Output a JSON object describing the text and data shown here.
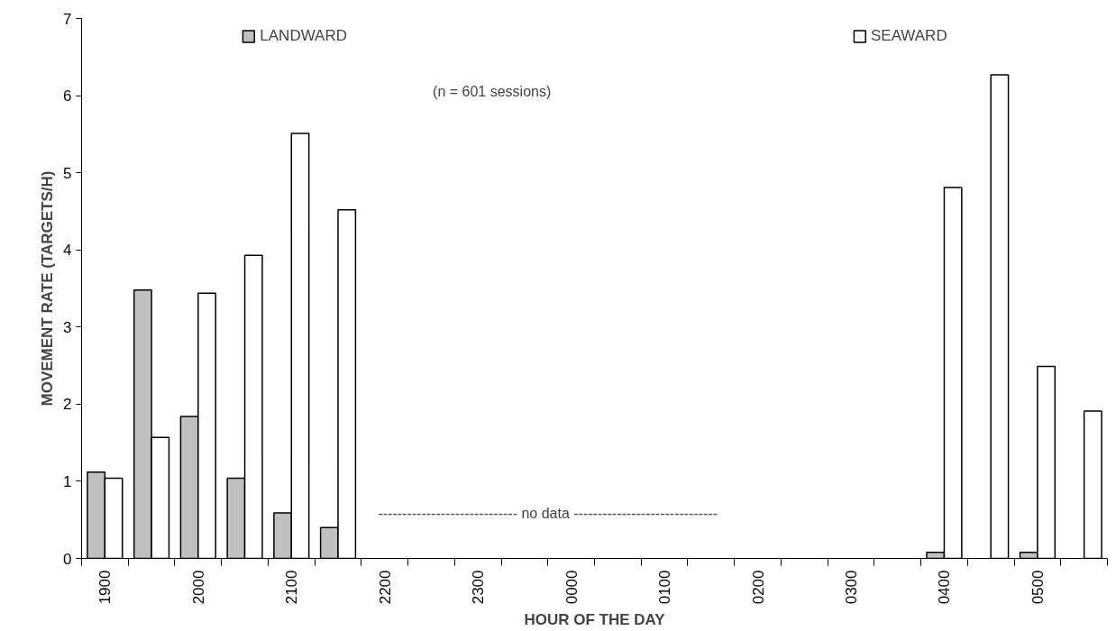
{
  "chart_data": {
    "type": "bar",
    "xlabel": "HOUR OF THE DAY",
    "ylabel": "MOVEMENT RATE (TARGETS/H)",
    "categories": [
      "1900",
      null,
      "2000",
      null,
      "2100",
      null,
      "2200",
      null,
      "2300",
      null,
      "0000",
      null,
      "0100",
      null,
      "0200",
      null,
      "0300",
      null,
      "0400",
      null,
      "0500",
      null
    ],
    "series": [
      {
        "name": "LANDWARD",
        "color": "#c0c0c0",
        "values": [
          1.12,
          3.48,
          1.84,
          1.04,
          0.59,
          0.4,
          null,
          null,
          null,
          null,
          null,
          null,
          null,
          null,
          null,
          null,
          null,
          null,
          0.08,
          null,
          0.08,
          null
        ]
      },
      {
        "name": "SEAWARD",
        "color": "#ffffff",
        "values": [
          1.04,
          1.57,
          3.44,
          3.93,
          5.51,
          4.52,
          null,
          null,
          null,
          null,
          null,
          null,
          null,
          null,
          null,
          null,
          null,
          null,
          4.81,
          6.27,
          2.49,
          1.91
        ]
      }
    ],
    "ylim": [
      0,
      7
    ],
    "yticks": [
      0,
      1,
      2,
      3,
      4,
      5,
      6,
      7
    ],
    "grid": false,
    "legend": "top",
    "annotations": [
      "(n = 601 sessions)",
      "----------------------------- no data ------------------------------"
    ]
  }
}
